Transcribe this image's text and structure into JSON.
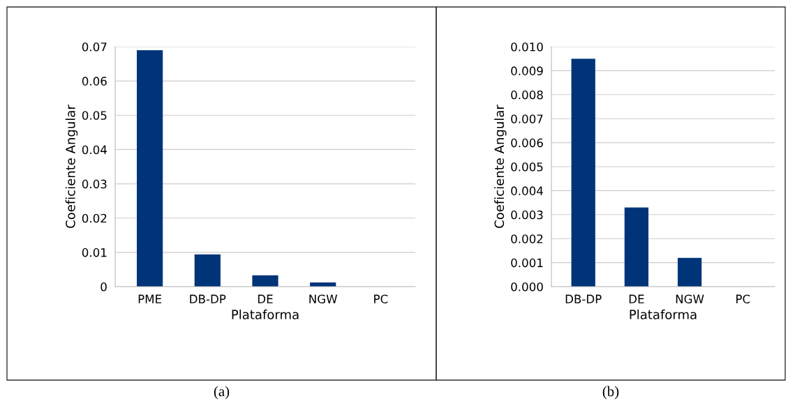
{
  "chart_data": [
    {
      "type": "bar",
      "xlabel": "Plataforma",
      "ylabel": "Coeficiente Angular",
      "categories": [
        "PME",
        "DB-DP",
        "DE",
        "NGW",
        "PC"
      ],
      "values": [
        0.069,
        0.0094,
        0.0033,
        0.0012,
        0
      ],
      "color": "#003478",
      "ylim": [
        0,
        0.07
      ],
      "yticks": [
        {
          "value": 0,
          "label": "0"
        },
        {
          "value": 0.01,
          "label": "0.01"
        },
        {
          "value": 0.02,
          "label": "0.02"
        },
        {
          "value": 0.03,
          "label": "0.03"
        },
        {
          "value": 0.04,
          "label": "0.04"
        },
        {
          "value": 0.05,
          "label": "0.05"
        },
        {
          "value": 0.06,
          "label": "0.06"
        },
        {
          "value": 0.07,
          "label": "0.07"
        }
      ],
      "grid": "y",
      "annotations": [
        "(a)"
      ]
    },
    {
      "type": "bar",
      "xlabel": "Plataforma",
      "ylabel": "Coeficiente Angular",
      "categories": [
        "DB-DP",
        "DE",
        "NGW",
        "PC"
      ],
      "values": [
        0.0095,
        0.0033,
        0.0012,
        0
      ],
      "color": "#003478",
      "ylim": [
        0,
        0.01
      ],
      "yticks": [
        {
          "value": 0,
          "label": "0.000"
        },
        {
          "value": 0.001,
          "label": "0.001"
        },
        {
          "value": 0.002,
          "label": "0.002"
        },
        {
          "value": 0.003,
          "label": "0.003"
        },
        {
          "value": 0.004,
          "label": "0.004"
        },
        {
          "value": 0.005,
          "label": "0.005"
        },
        {
          "value": 0.006,
          "label": "0.006"
        },
        {
          "value": 0.007,
          "label": "0.007"
        },
        {
          "value": 0.008,
          "label": "0.008"
        },
        {
          "value": 0.009,
          "label": "0.009"
        },
        {
          "value": 0.01,
          "label": "0.010"
        }
      ],
      "grid": "y",
      "annotations": [
        "(b)"
      ]
    }
  ]
}
